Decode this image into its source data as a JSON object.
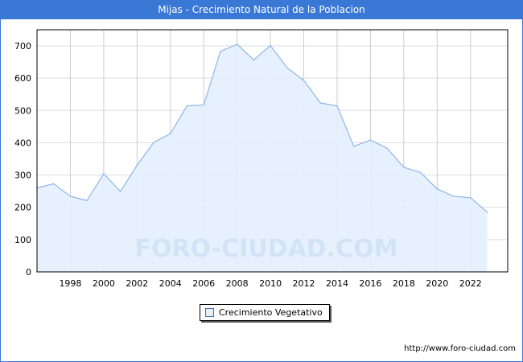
{
  "title": "Mijas - Crecimiento Natural de la Poblacion",
  "url": "http://www.foro-ciudad.com",
  "watermark": "FORO-CIUDAD.COM",
  "chart_data": {
    "type": "area",
    "title": "Mijas - Crecimiento Natural de la Poblacion",
    "x": [
      1996,
      1997,
      1998,
      1999,
      2000,
      2001,
      2002,
      2003,
      2004,
      2005,
      2006,
      2007,
      2008,
      2009,
      2010,
      2011,
      2012,
      2013,
      2014,
      2015,
      2016,
      2017,
      2018,
      2019,
      2020,
      2021,
      2022,
      2023
    ],
    "series": [
      {
        "name": "Crecimiento Vegetativo",
        "values": [
          260,
          273,
          234,
          221,
          304,
          249,
          330,
          401,
          428,
          514,
          517,
          683,
          705,
          656,
          701,
          632,
          593,
          523,
          514,
          389,
          408,
          383,
          324,
          308,
          257,
          234,
          230,
          185
        ]
      }
    ],
    "ylim": [
      0,
      750
    ],
    "yticks": [
      0,
      100,
      200,
      300,
      400,
      500,
      600,
      700
    ],
    "xticks": [
      1998,
      2000,
      2002,
      2004,
      2006,
      2008,
      2010,
      2012,
      2014,
      2016,
      2018,
      2020,
      2022
    ],
    "legend": "bottom-center",
    "grid": true,
    "colors": {
      "line": "#8fb6ea",
      "fill": "#e3f0fd"
    }
  }
}
